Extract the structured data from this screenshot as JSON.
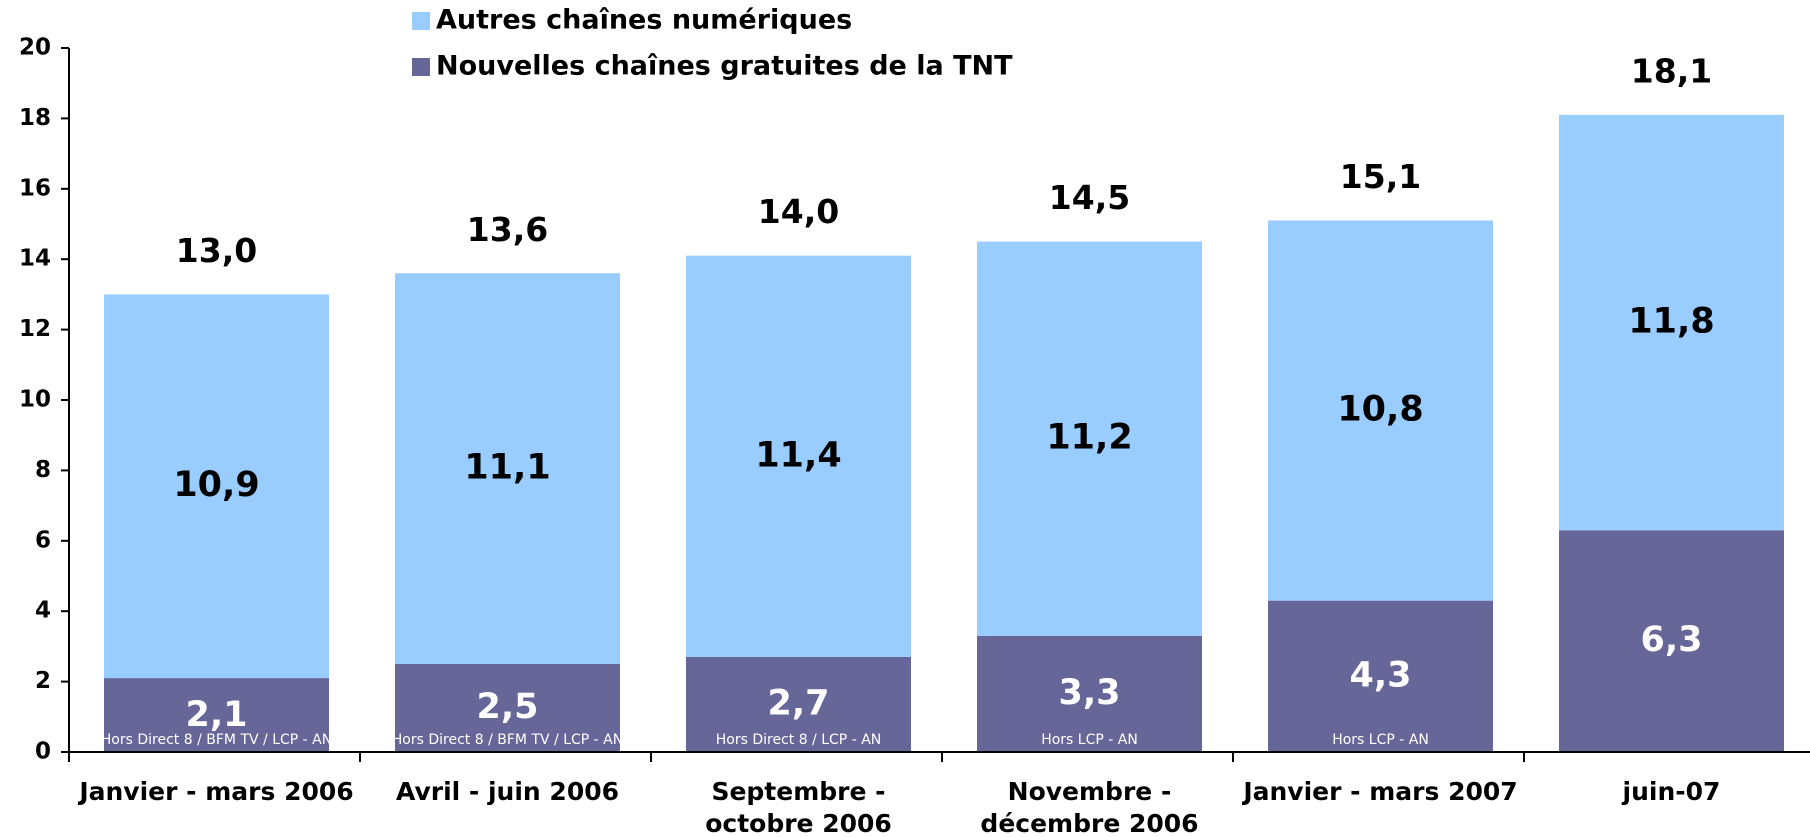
{
  "chart_data": {
    "type": "stacked_bar",
    "categories": [
      "Janvier - mars 2006",
      "Avril - juin 2006",
      "Septembre -\noctobre 2006",
      "Novembre -\ndécembre 2006",
      "Janvier - mars 2007",
      "juin-07"
    ],
    "series": [
      {
        "name": "Nouvelles chaînes gratuites de la TNT",
        "color": "#666699",
        "values": [
          2.1,
          2.5,
          2.7,
          3.3,
          4.3,
          6.3
        ],
        "value_labels": [
          "2,1",
          "2,5",
          "2,7",
          "3,3",
          "4,3",
          "6,3"
        ]
      },
      {
        "name": "Autres chaînes numériques",
        "color": "#99ccff",
        "values": [
          10.9,
          11.1,
          11.4,
          11.2,
          10.8,
          11.8
        ],
        "value_labels": [
          "10,9",
          "11,1",
          "11,4",
          "11,2",
          "10,8",
          "11,8"
        ]
      }
    ],
    "totals": [
      13.0,
      13.6,
      14.0,
      14.5,
      15.1,
      18.1
    ],
    "total_labels": [
      "13,0",
      "13,6",
      "14,0",
      "14,5",
      "15,1",
      "18,1"
    ],
    "notes": [
      "Hors Direct 8 / BFM TV / LCP - AN",
      "Hors Direct 8 / BFM TV / LCP - AN",
      "Hors Direct 8 / LCP - AN",
      "Hors LCP - AN",
      "Hors LCP - AN",
      null
    ],
    "ylim": [
      0,
      20
    ],
    "yticks": [
      0,
      2,
      4,
      6,
      8,
      10,
      12,
      14,
      16,
      18,
      20
    ],
    "grid": false,
    "legend": "top"
  }
}
